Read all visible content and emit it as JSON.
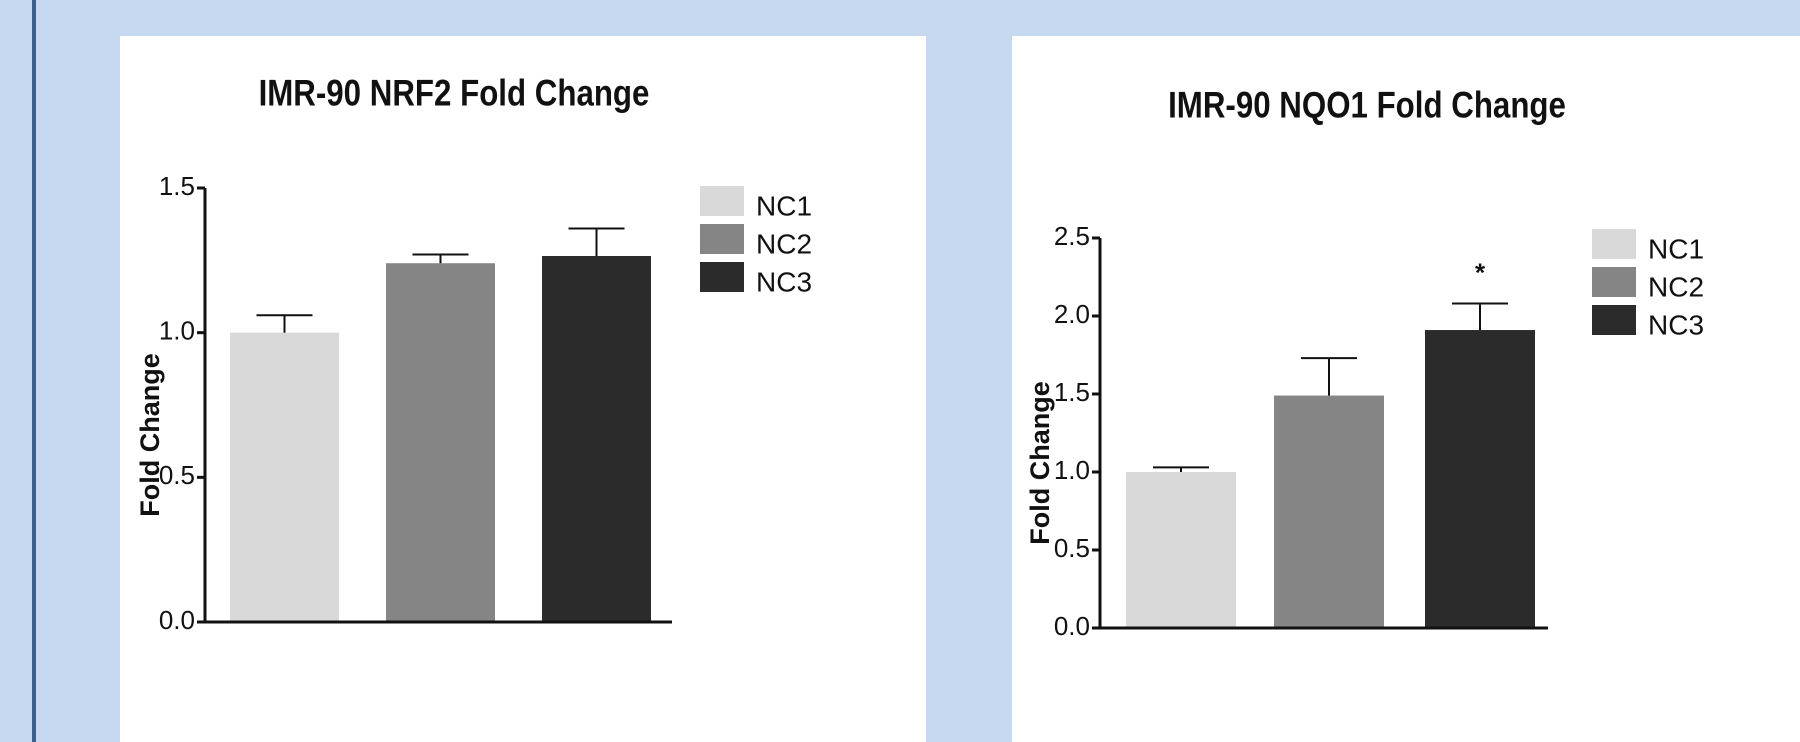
{
  "chart_data": [
    {
      "type": "bar",
      "title": "IMR-90 NRF2 Fold Change",
      "xlabel": "",
      "ylabel": "Fold Change",
      "categories": [
        "NC1",
        "NC2",
        "NC3"
      ],
      "values": [
        1.0,
        1.24,
        1.265
      ],
      "errors": [
        0.06,
        0.03,
        0.095
      ],
      "annotations": [
        "",
        "",
        ""
      ],
      "ylim": [
        0,
        1.5
      ],
      "yticks": [
        "0.0",
        "0.5",
        "1.0",
        "1.5"
      ],
      "legend": [
        "NC1",
        "NC2",
        "NC3"
      ],
      "legend_position": "right",
      "colors": [
        "#d9d9d9",
        "#858585",
        "#2b2b2b"
      ],
      "grid": false
    },
    {
      "type": "bar",
      "title": "IMR-90 NQO1 Fold Change",
      "xlabel": "",
      "ylabel": "Fold Change",
      "categories": [
        "NC1",
        "NC2",
        "NC3"
      ],
      "values": [
        1.0,
        1.49,
        1.91
      ],
      "errors": [
        0.03,
        0.24,
        0.17
      ],
      "annotations": [
        "",
        "",
        "*"
      ],
      "ylim": [
        0,
        2.5
      ],
      "yticks": [
        "0.0",
        "0.5",
        "1.0",
        "1.5",
        "2.0",
        "2.5"
      ],
      "legend": [
        "NC1",
        "NC2",
        "NC3"
      ],
      "legend_position": "right",
      "colors": [
        "#d9d9d9",
        "#858585",
        "#2b2b2b"
      ],
      "grid": false
    }
  ]
}
